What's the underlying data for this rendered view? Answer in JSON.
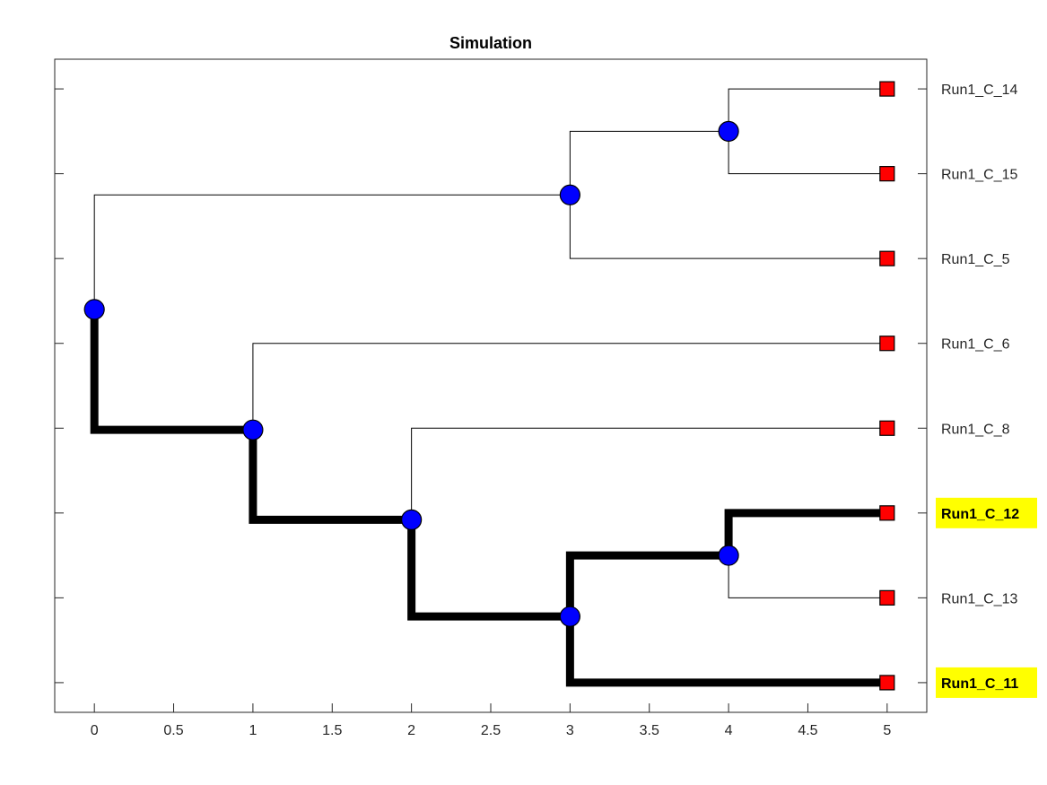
{
  "chart_data": {
    "type": "tree",
    "title": "Simulation",
    "xlim": [
      -0.25,
      5.25
    ],
    "x_ticks": [
      0,
      0.5,
      1,
      1.5,
      2,
      2.5,
      3,
      3.5,
      4,
      4.5,
      5
    ],
    "x_tick_labels": [
      "0",
      "0.5",
      "1",
      "1.5",
      "2",
      "2.5",
      "3",
      "3.5",
      "4",
      "4.5",
      "5"
    ],
    "ylim": [
      0.65,
      8.35
    ],
    "leaves": [
      {
        "id": "L14",
        "label": "Run1_C_14",
        "x": 5,
        "y": 8,
        "highlight": false
      },
      {
        "id": "L15",
        "label": "Run1_C_15",
        "x": 5,
        "y": 7,
        "highlight": false
      },
      {
        "id": "L5",
        "label": "Run1_C_5",
        "x": 5,
        "y": 6,
        "highlight": false
      },
      {
        "id": "L6",
        "label": "Run1_C_6",
        "x": 5,
        "y": 5,
        "highlight": false
      },
      {
        "id": "L8",
        "label": "Run1_C_8",
        "x": 5,
        "y": 4,
        "highlight": false
      },
      {
        "id": "L12",
        "label": "Run1_C_12",
        "x": 5,
        "y": 3,
        "highlight": true
      },
      {
        "id": "L13",
        "label": "Run1_C_13",
        "x": 5,
        "y": 2,
        "highlight": false
      },
      {
        "id": "L11",
        "label": "Run1_C_11",
        "x": 5,
        "y": 1,
        "highlight": true
      }
    ],
    "internal_nodes": [
      {
        "id": "N0",
        "x": 0,
        "y": 5.4
      },
      {
        "id": "N3a",
        "x": 3,
        "y": 6.75
      },
      {
        "id": "N4a",
        "x": 4,
        "y": 7.5
      },
      {
        "id": "N1",
        "x": 1,
        "y": 3.98
      },
      {
        "id": "N2",
        "x": 2,
        "y": 2.92
      },
      {
        "id": "N3b",
        "x": 3,
        "y": 1.78
      },
      {
        "id": "N4b",
        "x": 4,
        "y": 2.5
      }
    ],
    "edges": [
      {
        "parent": "N0",
        "child": "N3a",
        "highlight": false
      },
      {
        "parent": "N0",
        "child": "N1",
        "highlight": true
      },
      {
        "parent": "N3a",
        "child": "N4a",
        "highlight": false
      },
      {
        "parent": "N3a",
        "child": "L5",
        "highlight": false
      },
      {
        "parent": "N4a",
        "child": "L14",
        "highlight": false
      },
      {
        "parent": "N4a",
        "child": "L15",
        "highlight": false
      },
      {
        "parent": "N1",
        "child": "L6",
        "highlight": false
      },
      {
        "parent": "N1",
        "child": "N2",
        "highlight": true
      },
      {
        "parent": "N2",
        "child": "L8",
        "highlight": false
      },
      {
        "parent": "N2",
        "child": "N3b",
        "highlight": true
      },
      {
        "parent": "N3b",
        "child": "N4b",
        "highlight": true
      },
      {
        "parent": "N3b",
        "child": "L11",
        "highlight": true
      },
      {
        "parent": "N4b",
        "child": "L12",
        "highlight": true
      },
      {
        "parent": "N4b",
        "child": "L13",
        "highlight": false
      }
    ],
    "colors": {
      "internal_node": "#0000ff",
      "leaf_node": "#ff0000",
      "highlight_label_bg": "#ffff00",
      "edge": "#000000"
    },
    "grid": false
  }
}
